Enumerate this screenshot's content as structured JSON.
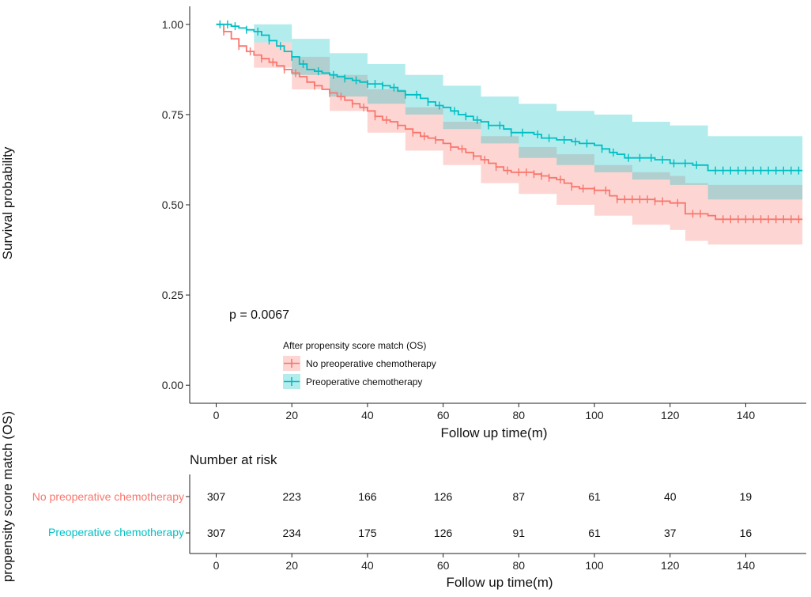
{
  "chart_data": {
    "type": "kaplan-meier",
    "legend": {
      "title": "After propensity score match (OS)",
      "position": "bottom-left inside plot"
    },
    "p_value_text": "p = 0.0067",
    "x_axis": {
      "label": "Follow up time(m)",
      "range": [
        -7,
        156
      ],
      "ticks": [
        "0",
        "20",
        "40",
        "60",
        "80",
        "100",
        "120",
        "140"
      ]
    },
    "y_axis": {
      "label": "Survival probability",
      "range": [
        -0.05,
        1.05
      ],
      "ticks": [
        "0.00",
        "0.25",
        "0.50",
        "0.75",
        "1.00"
      ]
    },
    "series": [
      {
        "name": "No preoperative chemotherapy",
        "color": "#F8766D",
        "band_color": "#F8766D",
        "curve": [
          [
            0,
            1.0
          ],
          [
            2,
            0.98
          ],
          [
            4,
            0.96
          ],
          [
            6,
            0.94
          ],
          [
            8,
            0.925
          ],
          [
            10,
            0.915
          ],
          [
            12,
            0.905
          ],
          [
            14,
            0.895
          ],
          [
            16,
            0.885
          ],
          [
            18,
            0.875
          ],
          [
            20,
            0.865
          ],
          [
            22,
            0.855
          ],
          [
            24,
            0.84
          ],
          [
            26,
            0.83
          ],
          [
            28,
            0.82
          ],
          [
            30,
            0.81
          ],
          [
            32,
            0.8
          ],
          [
            34,
            0.79
          ],
          [
            36,
            0.78
          ],
          [
            38,
            0.77
          ],
          [
            40,
            0.76
          ],
          [
            42,
            0.745
          ],
          [
            44,
            0.735
          ],
          [
            46,
            0.73
          ],
          [
            48,
            0.72
          ],
          [
            50,
            0.71
          ],
          [
            52,
            0.7
          ],
          [
            54,
            0.69
          ],
          [
            56,
            0.685
          ],
          [
            58,
            0.68
          ],
          [
            60,
            0.67
          ],
          [
            62,
            0.66
          ],
          [
            64,
            0.655
          ],
          [
            66,
            0.645
          ],
          [
            68,
            0.635
          ],
          [
            70,
            0.625
          ],
          [
            72,
            0.615
          ],
          [
            74,
            0.605
          ],
          [
            76,
            0.595
          ],
          [
            78,
            0.59
          ],
          [
            80,
            0.59
          ],
          [
            84,
            0.585
          ],
          [
            86,
            0.58
          ],
          [
            88,
            0.575
          ],
          [
            90,
            0.57
          ],
          [
            92,
            0.56
          ],
          [
            94,
            0.55
          ],
          [
            96,
            0.545
          ],
          [
            100,
            0.54
          ],
          [
            104,
            0.525
          ],
          [
            106,
            0.515
          ],
          [
            110,
            0.515
          ],
          [
            116,
            0.51
          ],
          [
            120,
            0.505
          ],
          [
            124,
            0.475
          ],
          [
            130,
            0.47
          ],
          [
            132,
            0.46
          ],
          [
            155,
            0.46
          ]
        ],
        "lower": [
          [
            0,
            1.0
          ],
          [
            10,
            0.88
          ],
          [
            20,
            0.82
          ],
          [
            30,
            0.76
          ],
          [
            40,
            0.7
          ],
          [
            50,
            0.65
          ],
          [
            60,
            0.61
          ],
          [
            70,
            0.56
          ],
          [
            80,
            0.53
          ],
          [
            90,
            0.5
          ],
          [
            100,
            0.47
          ],
          [
            110,
            0.445
          ],
          [
            120,
            0.43
          ],
          [
            124,
            0.4
          ],
          [
            130,
            0.39
          ],
          [
            155,
            0.385
          ]
        ],
        "upper": [
          [
            0,
            1.0
          ],
          [
            10,
            0.95
          ],
          [
            20,
            0.91
          ],
          [
            30,
            0.86
          ],
          [
            40,
            0.82
          ],
          [
            50,
            0.77
          ],
          [
            60,
            0.73
          ],
          [
            70,
            0.69
          ],
          [
            80,
            0.66
          ],
          [
            90,
            0.64
          ],
          [
            100,
            0.61
          ],
          [
            110,
            0.59
          ],
          [
            120,
            0.58
          ],
          [
            124,
            0.56
          ],
          [
            130,
            0.555
          ],
          [
            155,
            0.55
          ]
        ],
        "censor_times": [
          2,
          6,
          9,
          12,
          15,
          18,
          21,
          26,
          30,
          33,
          36,
          39,
          42,
          45,
          48,
          52,
          55,
          58,
          62,
          65,
          68,
          71,
          74,
          77,
          80,
          82,
          84,
          86,
          88,
          91,
          94,
          97,
          100,
          103,
          106,
          108,
          110,
          112,
          114,
          116,
          118,
          122,
          126,
          128,
          134,
          136,
          138,
          140,
          142,
          144,
          146,
          148,
          150,
          152,
          154
        ],
        "risk": [
          "307",
          "223",
          "166",
          "126",
          "87",
          "61",
          "40",
          "19"
        ]
      },
      {
        "name": "Preoperative chemotherapy",
        "color": "#00BFC4",
        "band_color": "#00BFC4",
        "curve": [
          [
            0,
            1.0
          ],
          [
            2,
            1.0
          ],
          [
            4,
            0.995
          ],
          [
            6,
            0.99
          ],
          [
            8,
            0.985
          ],
          [
            10,
            0.98
          ],
          [
            12,
            0.97
          ],
          [
            14,
            0.955
          ],
          [
            16,
            0.94
          ],
          [
            18,
            0.925
          ],
          [
            20,
            0.91
          ],
          [
            22,
            0.89
          ],
          [
            24,
            0.875
          ],
          [
            26,
            0.87
          ],
          [
            28,
            0.865
          ],
          [
            30,
            0.86
          ],
          [
            32,
            0.855
          ],
          [
            34,
            0.85
          ],
          [
            36,
            0.845
          ],
          [
            38,
            0.84
          ],
          [
            40,
            0.835
          ],
          [
            44,
            0.83
          ],
          [
            46,
            0.825
          ],
          [
            48,
            0.815
          ],
          [
            50,
            0.805
          ],
          [
            54,
            0.795
          ],
          [
            56,
            0.785
          ],
          [
            58,
            0.775
          ],
          [
            60,
            0.77
          ],
          [
            62,
            0.76
          ],
          [
            64,
            0.75
          ],
          [
            66,
            0.745
          ],
          [
            68,
            0.735
          ],
          [
            70,
            0.73
          ],
          [
            72,
            0.72
          ],
          [
            76,
            0.71
          ],
          [
            78,
            0.7
          ],
          [
            84,
            0.695
          ],
          [
            86,
            0.685
          ],
          [
            90,
            0.68
          ],
          [
            94,
            0.675
          ],
          [
            96,
            0.67
          ],
          [
            100,
            0.665
          ],
          [
            102,
            0.655
          ],
          [
            104,
            0.645
          ],
          [
            106,
            0.64
          ],
          [
            108,
            0.63
          ],
          [
            116,
            0.625
          ],
          [
            120,
            0.615
          ],
          [
            126,
            0.61
          ],
          [
            130,
            0.595
          ],
          [
            155,
            0.595
          ]
        ],
        "lower": [
          [
            0,
            1.0
          ],
          [
            10,
            0.95
          ],
          [
            20,
            0.86
          ],
          [
            30,
            0.8
          ],
          [
            40,
            0.78
          ],
          [
            50,
            0.75
          ],
          [
            60,
            0.71
          ],
          [
            70,
            0.67
          ],
          [
            80,
            0.63
          ],
          [
            90,
            0.61
          ],
          [
            100,
            0.59
          ],
          [
            110,
            0.57
          ],
          [
            120,
            0.555
          ],
          [
            130,
            0.515
          ],
          [
            155,
            0.51
          ]
        ],
        "upper": [
          [
            0,
            1.0
          ],
          [
            10,
            1.0
          ],
          [
            20,
            0.96
          ],
          [
            30,
            0.92
          ],
          [
            40,
            0.89
          ],
          [
            50,
            0.86
          ],
          [
            60,
            0.83
          ],
          [
            70,
            0.8
          ],
          [
            80,
            0.78
          ],
          [
            90,
            0.76
          ],
          [
            100,
            0.75
          ],
          [
            110,
            0.73
          ],
          [
            120,
            0.72
          ],
          [
            130,
            0.69
          ],
          [
            155,
            0.69
          ]
        ],
        "censor_times": [
          1,
          3,
          5,
          8,
          11,
          14,
          17,
          20,
          23,
          27,
          31,
          34,
          37,
          40,
          42,
          44,
          47,
          50,
          53,
          56,
          59,
          63,
          66,
          69,
          72,
          75,
          78,
          81,
          85,
          88,
          92,
          95,
          98,
          102,
          105,
          109,
          112,
          115,
          118,
          121,
          124,
          127,
          132,
          134,
          136,
          138,
          140,
          142,
          144,
          146,
          148,
          150,
          152,
          154
        ],
        "risk": [
          "307",
          "234",
          "175",
          "126",
          "91",
          "61",
          "37",
          "16"
        ]
      }
    ],
    "risk_table": {
      "title": "Number at risk",
      "x_label": "Follow up time(m)",
      "y_label": "propensity score match (OS)",
      "ticks": [
        "0",
        "20",
        "40",
        "60",
        "80",
        "100",
        "120",
        "140"
      ]
    }
  }
}
